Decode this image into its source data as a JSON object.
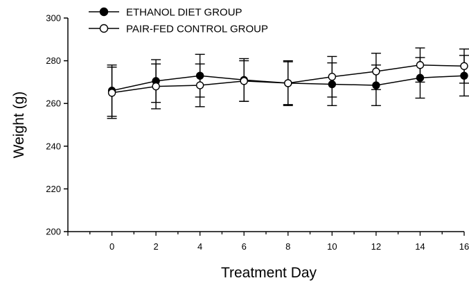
{
  "chart_data": {
    "type": "line",
    "xlabel": "Treatment Day",
    "ylabel": "Weight (g)",
    "xlim": [
      -2,
      16
    ],
    "ylim": [
      200,
      300
    ],
    "x_ticks": [
      "0",
      "2",
      "4",
      "6",
      "8",
      "10",
      "12",
      "14",
      "16"
    ],
    "y_ticks": [
      "200",
      "220",
      "240",
      "260",
      "280",
      "300"
    ],
    "legend_position": "top-left",
    "grid": false,
    "x": [
      0,
      2,
      4,
      6,
      8,
      10,
      12,
      14,
      16
    ],
    "series": [
      {
        "name": "ETHANOL DIET GROUP",
        "marker": "filled-circle",
        "values": [
          266,
          270.5,
          273,
          271,
          269.5,
          269,
          268.5,
          272,
          273
        ],
        "error": [
          12,
          10,
          10,
          10,
          10,
          10,
          9.5,
          9.5,
          9.5
        ]
      },
      {
        "name": "PAIR-FED CONTROL GROUP",
        "marker": "open-circle",
        "values": [
          265,
          268,
          268.5,
          270.5,
          269.5,
          272.5,
          275,
          278,
          277.5
        ],
        "error": [
          12,
          10.5,
          10,
          9.5,
          10.5,
          9.5,
          8.5,
          8,
          8
        ]
      }
    ]
  }
}
